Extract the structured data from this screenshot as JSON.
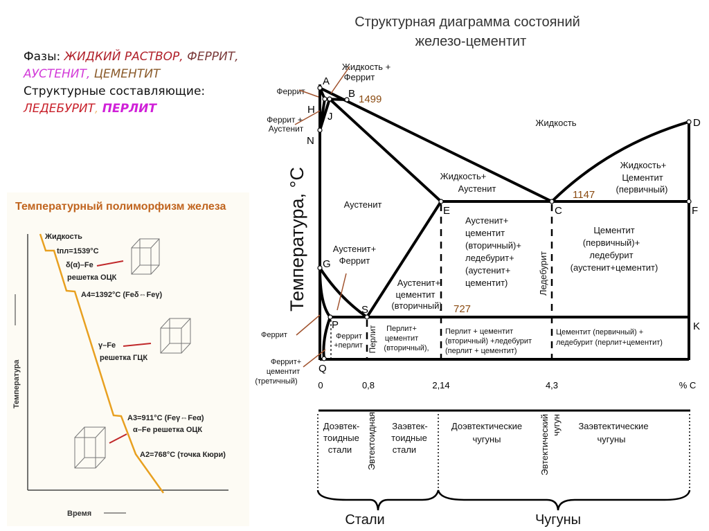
{
  "phases": {
    "label": "Фазы: ",
    "items": [
      "ЖИДКИЙ РАСТВОР,",
      "ФЕРРИТ,",
      "АУСТЕНИТ,",
      "ЦЕМЕНТИТ"
    ],
    "structural_label": "Структурные составляющие:",
    "structural_items": [
      "ЛЕДЕБУРИТ",
      ",",
      "ПЕРЛИТ"
    ],
    "colors": {
      "liquid": "#b0202a",
      "ferrite": "#7a3a3a",
      "austenite": "#d23ad8",
      "cementite": "#8a5a2a",
      "ledeburite": "#c8202a",
      "pearlite": "#d020d8"
    }
  },
  "polymorphism": {
    "title": "Температурный полиморфизм  железа",
    "y_axis": "Температура",
    "x_axis": "Время",
    "labels": [
      "Жидкость",
      "tпл=1539°C",
      "δ(α)–Fe",
      "решетка ОЦК",
      "A4=1392°C (Feδ⇔Feγ)",
      "γ–Fe",
      "решетка ГЦК",
      "A3=911°C (Feγ⇔Feα)",
      "α–Fe решетка ОЦК",
      "A2=768°C (точка Кюри)"
    ],
    "colors": {
      "curve": "#e8a020",
      "title": "#c0641e",
      "arrow": "#c0282a"
    }
  },
  "diagram": {
    "title_line1": "Структурная диаграмма состояний",
    "title_line2": "железо-цементит",
    "y_axis": "Температура, °С",
    "x_unit": "% С",
    "x_ticks": [
      "0",
      "0,8",
      "2,14",
      "4,3"
    ],
    "points": [
      "A",
      "B",
      "H",
      "J",
      "N",
      "G",
      "S",
      "P",
      "Q",
      "E",
      "C",
      "D",
      "F",
      "K"
    ],
    "temperatures": [
      "1499",
      "1147",
      "727"
    ],
    "regions": {
      "liquid": "Жидкость",
      "liquid_ferrite": [
        "Жидкость +",
        "Феррит"
      ],
      "ferrite_top": "Феррит",
      "ferrite_austenite": [
        "Феррит +",
        "Аустенит"
      ],
      "liquid_austenite": [
        "Жидкость+",
        "Аустенит"
      ],
      "liquid_cementite": [
        "Жидкость+",
        "Цементит",
        "(первичный)"
      ],
      "austenite": "Аустенит",
      "austenite_ferrite": [
        "Аустенит+",
        "Феррит"
      ],
      "austenite_cementite": [
        "Аустенит+",
        "цементит",
        "(вторичный)"
      ],
      "austenite_cementite_ledeburite": [
        "Аустенит+",
        "цементит",
        "(вторичный)+",
        "ледебурит+",
        "(аустенит+",
        "цементит)"
      ],
      "cementite_ledeburite": [
        "Цементит",
        "(первичный)+",
        "ледебурит",
        "(аустенит+цементит)"
      ],
      "ledeburite_vertical": "Ледебурит",
      "ferrite_low": "Феррит",
      "ferrite_pearlite": [
        "Феррит",
        "+перлит"
      ],
      "pearlite_vertical": "Перлит",
      "pearlite_cementite": [
        "Перлит+",
        "цементит",
        "(вторичный),"
      ],
      "pearlite_cementite_ledeburite": [
        "Перлит + цементит",
        "(вторичный) +ледебурит",
        "(перлит + цементит)"
      ],
      "cementite_ledeburite_low": [
        "Цементит (первичный) +",
        "ледебурит (перлит+цементит)"
      ],
      "ferrite_tertiary": [
        "Феррит+",
        "цементит",
        "(третичный)"
      ]
    },
    "classes": {
      "hypoeutectoid": [
        "Доэвтек-",
        "тоидные",
        "стали"
      ],
      "eutectoid": "Эвтектоидная",
      "hypereutectoid": [
        "Заэвтек-",
        "тоидные",
        "стали"
      ],
      "hypoeutectic": [
        "Доэвтектические",
        "чугуны"
      ],
      "eutectic": [
        "Эвтектический",
        "чугун"
      ],
      "hypereutectic": [
        "Заэвтектические",
        "чугуны"
      ],
      "steels": "Стали",
      "cast_irons": "Чугуны"
    },
    "colors": {
      "line": "#000000",
      "temperature": "#8a4a10",
      "arrow": "#a0522d"
    }
  }
}
